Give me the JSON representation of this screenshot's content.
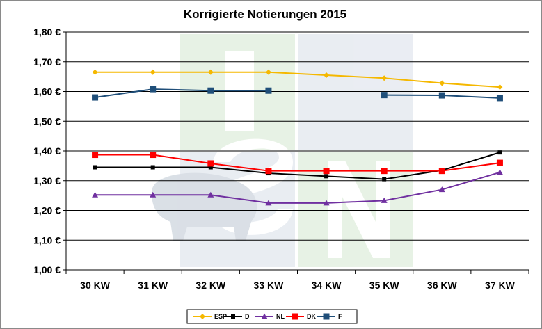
{
  "chart_data": {
    "type": "line",
    "title": "Korrigierte Notierungen 2015",
    "categories": [
      "30 KW",
      "31 KW",
      "32 KW",
      "33 KW",
      "34 KW",
      "35 KW",
      "36 KW",
      "37 KW"
    ],
    "ylim": [
      1.0,
      1.8
    ],
    "y_ticks": [
      1.0,
      1.1,
      1.2,
      1.3,
      1.4,
      1.5,
      1.6,
      1.7,
      1.8
    ],
    "y_tick_labels": [
      "1,00 €",
      "1,10 €",
      "1,20 €",
      "1,30 €",
      "1,40 €",
      "1,50 €",
      "1,60 €",
      "1,70 €",
      "1,80 €"
    ],
    "grid": true,
    "legend_position": "bottom",
    "watermark": "ISN",
    "series": [
      {
        "name": "ESP",
        "color": "#f5b800",
        "marker": "diamond",
        "values": [
          1.665,
          1.665,
          1.665,
          1.665,
          1.655,
          1.645,
          1.628,
          1.615
        ]
      },
      {
        "name": "D",
        "color": "#000000",
        "marker": "square-small",
        "values": [
          1.345,
          1.345,
          1.345,
          1.325,
          1.315,
          1.305,
          1.335,
          1.395
        ]
      },
      {
        "name": "NL",
        "color": "#7030a0",
        "marker": "triangle",
        "values": [
          1.252,
          1.252,
          1.252,
          1.225,
          1.225,
          1.233,
          1.27,
          1.328
        ]
      },
      {
        "name": "DK",
        "color": "#ff0000",
        "marker": "square",
        "values": [
          1.387,
          1.387,
          1.358,
          1.333,
          1.333,
          1.333,
          1.333,
          1.36
        ]
      },
      {
        "name": "F",
        "color": "#1f4e79",
        "marker": "square",
        "values": [
          1.58,
          1.608,
          1.603,
          1.603,
          null,
          1.588,
          1.587,
          1.578
        ]
      }
    ]
  }
}
